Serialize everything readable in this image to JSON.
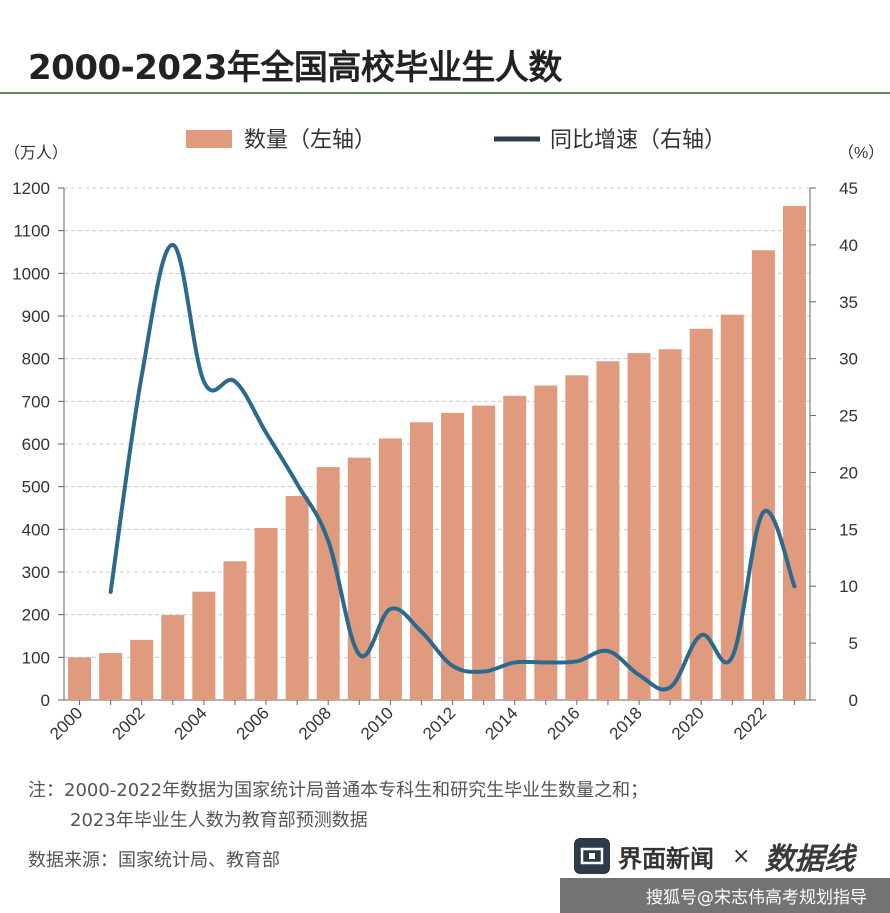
{
  "title": "2000-2023年全国高校毕业生人数",
  "notes": {
    "line1": "注：2000-2022年数据为国家统计局普通本专科生和研究生毕业生数量之和；",
    "line2": "2023年毕业生人数为教育部预测数据",
    "source": "数据来源：国家统计局、教育部"
  },
  "brand": {
    "name": "界面新闻",
    "times": "×",
    "mark": "数据线",
    "mark_icon": "data-wire-logo",
    "logo_icon": "jiemian-logo-icon"
  },
  "watermark_bar": "搜狐号@宋志伟高考规划指导",
  "colors": {
    "bar": "#e09a7e",
    "line": "#2b6a8c",
    "grid": "#cccccc",
    "axis_text": "#333333"
  },
  "chart_data": {
    "type": "bar",
    "legend": {
      "bar_label": "数量（左轴）",
      "line_label": "同比增速（右轴）",
      "placement": "top"
    },
    "y_left_unit": "（万人）",
    "y_right_unit": "（%）",
    "y_left_lim": [
      0,
      1200
    ],
    "y_left_ticks": [
      0,
      100,
      200,
      300,
      400,
      500,
      600,
      700,
      800,
      900,
      1000,
      1100,
      1200
    ],
    "y_right_lim": [
      0,
      45
    ],
    "y_right_ticks": [
      0,
      5,
      10,
      15,
      20,
      25,
      30,
      35,
      40,
      45
    ],
    "grid": true,
    "years": [
      2000,
      2001,
      2002,
      2003,
      2004,
      2005,
      2006,
      2007,
      2008,
      2009,
      2010,
      2011,
      2012,
      2013,
      2014,
      2015,
      2016,
      2017,
      2018,
      2019,
      2020,
      2021,
      2022,
      2023
    ],
    "x_tick_labels": [
      "2000",
      "2002",
      "2004",
      "2006",
      "2008",
      "2010",
      "2012",
      "2014",
      "2016",
      "2018",
      "2020",
      "2022"
    ],
    "series": [
      {
        "name": "数量（左轴）",
        "type": "bar",
        "axis": "left",
        "values": [
          100,
          110,
          141,
          199,
          254,
          325,
          403,
          478,
          546,
          568,
          613,
          651,
          673,
          690,
          713,
          737,
          761,
          794,
          813,
          822,
          870,
          903,
          1054,
          1158
        ]
      },
      {
        "name": "同比增速（右轴）",
        "type": "line",
        "axis": "right",
        "values": [
          null,
          9.5,
          28.5,
          40.0,
          28.0,
          28.0,
          23.5,
          19.0,
          14.0,
          4.0,
          8.0,
          6.0,
          3.0,
          2.5,
          3.3,
          3.3,
          3.4,
          4.3,
          2.2,
          1.1,
          5.7,
          3.8,
          16.5,
          10.0
        ]
      }
    ]
  }
}
